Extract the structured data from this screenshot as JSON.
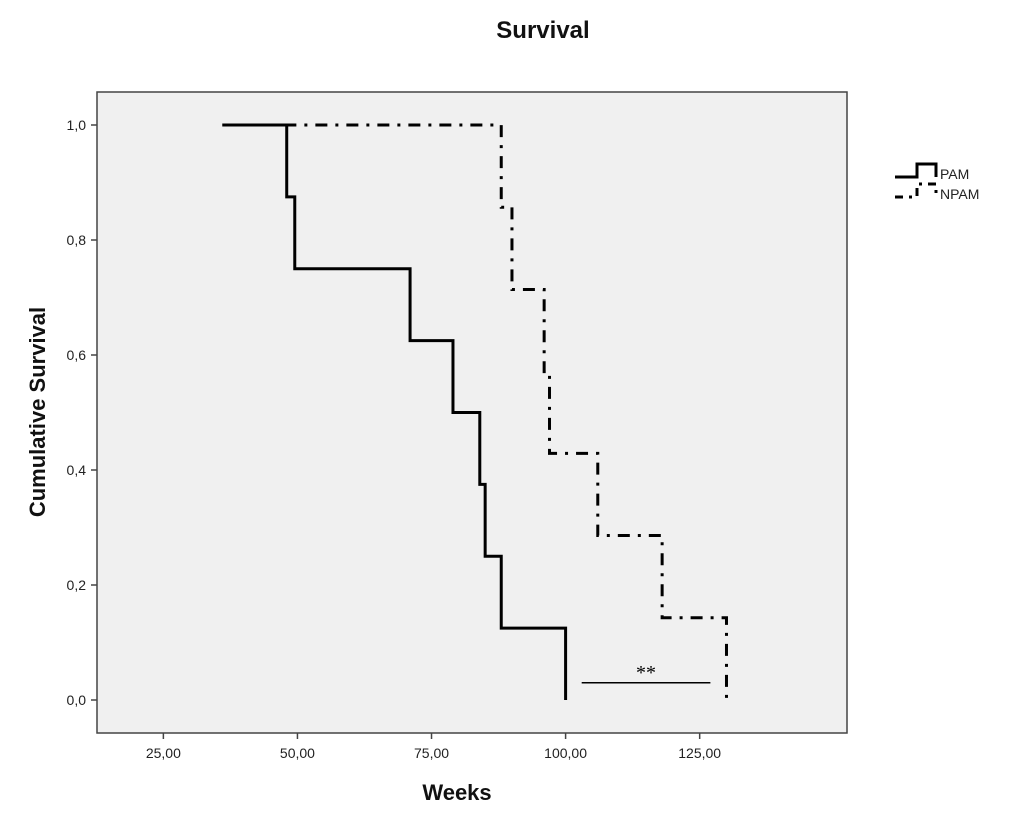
{
  "chart_data": {
    "type": "line",
    "title": "Survival",
    "xlabel": "Weeks",
    "ylabel": "Cumulative Survival",
    "xlim": [
      15,
      145
    ],
    "ylim": [
      -0.06,
      1.06
    ],
    "x_ticks": [
      25,
      50,
      75,
      100,
      125
    ],
    "x_tick_labels": [
      "25,00",
      "50,00",
      "75,00",
      "100,00",
      "125,00"
    ],
    "y_ticks": [
      0,
      0.2,
      0.4,
      0.6,
      0.8,
      1.0
    ],
    "y_tick_labels": [
      "0,0",
      "0,2",
      "0,4",
      "0,6",
      "0,8",
      "1,0"
    ],
    "grid": false,
    "legend_position": "right",
    "series": [
      {
        "name": "PAM",
        "style": "solid",
        "start": 36,
        "steps": [
          [
            48,
            0.875
          ],
          [
            49.5,
            0.75
          ],
          [
            71,
            0.625
          ],
          [
            79,
            0.5
          ],
          [
            84,
            0.375
          ],
          [
            85,
            0.25
          ],
          [
            88,
            0.125
          ],
          [
            100,
            0.0
          ]
        ]
      },
      {
        "name": "NPAM",
        "style": "dash-dot",
        "start": 36,
        "steps": [
          [
            88,
            0.857
          ],
          [
            90,
            0.714
          ],
          [
            96,
            0.571
          ],
          [
            97,
            0.429
          ],
          [
            106,
            0.286
          ],
          [
            118,
            0.143
          ],
          [
            130,
            0.0
          ]
        ]
      }
    ],
    "annotation": {
      "text": "**",
      "x_from": 103,
      "x_to": 127,
      "y": 0.03
    }
  }
}
